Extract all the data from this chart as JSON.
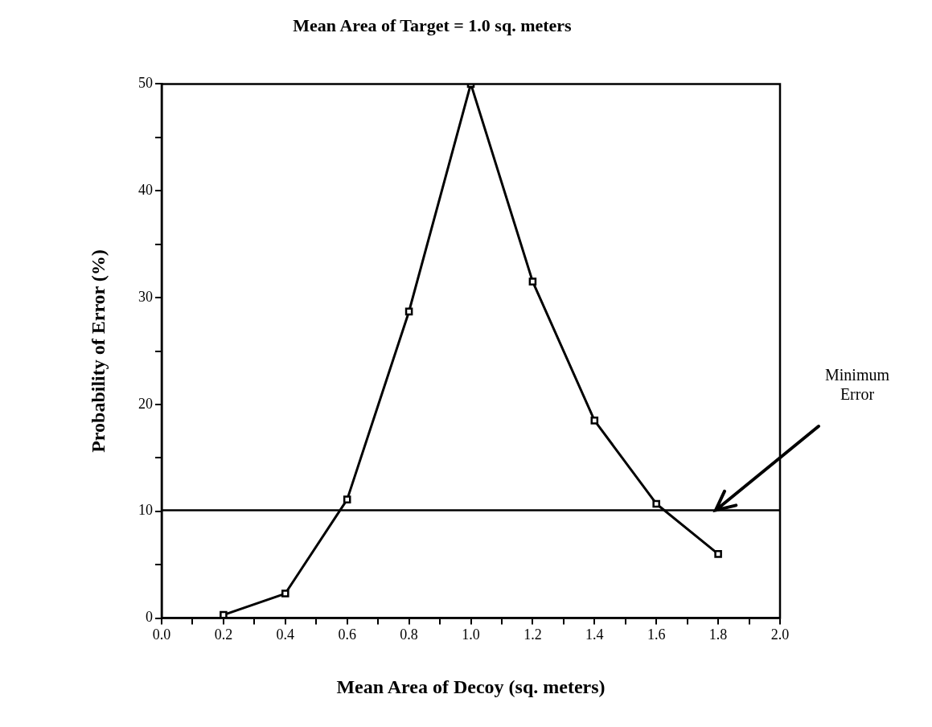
{
  "chart_data": {
    "type": "line",
    "title": "Mean Area of Target = 1.0 sq. meters",
    "xlabel": "Mean Area of Decoy (sq. meters)",
    "ylabel": "Probability of Error (%)",
    "x": [
      0.2,
      0.4,
      0.6,
      0.8,
      1.0,
      1.2,
      1.4,
      1.6,
      1.8
    ],
    "series": [
      {
        "color": "#000000",
        "values": [
          0.3,
          2.3,
          11.1,
          28.7,
          50,
          31.5,
          18.5,
          10.7,
          6.0
        ]
      }
    ],
    "xlim": [
      0,
      2.0
    ],
    "xticks": [
      {
        "value": 0,
        "label": "0.0"
      },
      {
        "value": 0.1,
        "label": null
      },
      {
        "value": 0.2,
        "label": "0.2"
      },
      {
        "value": 0.3,
        "label": null
      },
      {
        "value": 0.4,
        "label": "0.4"
      },
      {
        "value": 0.5,
        "label": null
      },
      {
        "value": 0.6,
        "label": "0.6"
      },
      {
        "value": 0.7,
        "label": null
      },
      {
        "value": 0.8,
        "label": "0.8"
      },
      {
        "value": 0.9,
        "label": null
      },
      {
        "value": 1.0,
        "label": "1.0"
      },
      {
        "value": 1.1,
        "label": null
      },
      {
        "value": 1.2,
        "label": "1.2"
      },
      {
        "value": 1.3,
        "label": null
      },
      {
        "value": 1.4,
        "label": "1.4"
      },
      {
        "value": 1.5,
        "label": null
      },
      {
        "value": 1.6,
        "label": "1.6"
      },
      {
        "value": 1.7,
        "label": null
      },
      {
        "value": 1.8,
        "label": "1.8"
      },
      {
        "value": 1.9,
        "label": null
      },
      {
        "value": 2.0,
        "label": "2.0"
      }
    ],
    "ylim": [
      0,
      50
    ],
    "yticks": [
      0,
      {
        "value": 5,
        "label": null
      },
      10,
      {
        "value": 15,
        "label": null
      },
      20,
      {
        "value": 25,
        "label": null
      },
      30,
      {
        "value": 35,
        "label": null
      },
      40,
      {
        "value": 45,
        "label": null
      },
      50
    ],
    "ref_lines": [
      {
        "axis": "y",
        "value": 10.1,
        "color": "#000000"
      }
    ],
    "annotations": [
      "Minimum Error"
    ],
    "grid": false,
    "legend": false,
    "marker": "square",
    "line_style": "solid"
  }
}
